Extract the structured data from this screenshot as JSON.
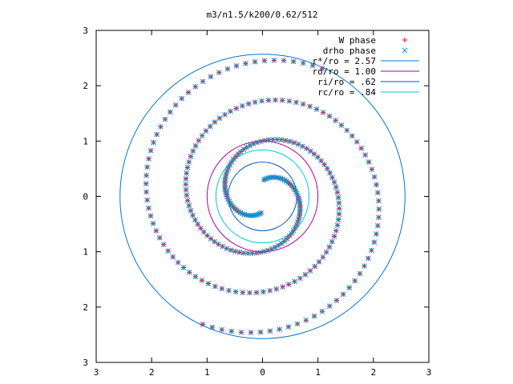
{
  "chart_data": {
    "type": "scatter",
    "title": "m3/n1.5/k200/0.62/512",
    "xlim": [
      -3,
      3
    ],
    "ylim": [
      -3,
      3
    ],
    "xticks": [
      -3,
      -2,
      -1,
      0,
      1,
      2,
      3
    ],
    "yticks": [
      -3,
      -2,
      -1,
      0,
      1,
      2,
      3
    ],
    "xtick_labels": [
      "3",
      "2",
      "1",
      "0",
      "1",
      "2",
      "3"
    ],
    "ytick_labels": [
      "3",
      "2",
      "1",
      "0",
      "1",
      "2",
      "3"
    ],
    "grid": false,
    "legend_position": "top-right",
    "series": [
      {
        "name": "W phase",
        "kind": "points",
        "marker": "plus",
        "color": "#ff0000",
        "arms": [
          {
            "r_range": [
              0.3,
              2.55
            ],
            "theta0_deg": 85,
            "winding_deg": 560,
            "count": 140,
            "rotation_deg": 0
          },
          {
            "r_range": [
              0.3,
              2.55
            ],
            "theta0_deg": 85,
            "winding_deg": 560,
            "count": 140,
            "rotation_deg": 180
          }
        ]
      },
      {
        "name": "drho phase",
        "kind": "points",
        "marker": "cross",
        "color": "#0099dd",
        "arms": [
          {
            "r_range": [
              0.3,
              2.55
            ],
            "theta0_deg": 85,
            "winding_deg": 560,
            "count": 140,
            "rotation_deg": 0
          },
          {
            "r_range": [
              0.3,
              2.55
            ],
            "theta0_deg": 85,
            "winding_deg": 560,
            "count": 140,
            "rotation_deg": 180
          }
        ]
      },
      {
        "name": "r*/ro = 2.57",
        "kind": "circle",
        "r": 2.57,
        "color": "#0077cc"
      },
      {
        "name": "ro/ro = 1.00",
        "kind": "circle",
        "r": 1.0,
        "color": "#aa00aa"
      },
      {
        "name": "ri/ro = .62",
        "kind": "circle",
        "r": 0.62,
        "color": "#0055bb"
      },
      {
        "name": "rc/ro = .84",
        "kind": "circle",
        "r": 0.84,
        "color": "#00cccc"
      }
    ]
  }
}
